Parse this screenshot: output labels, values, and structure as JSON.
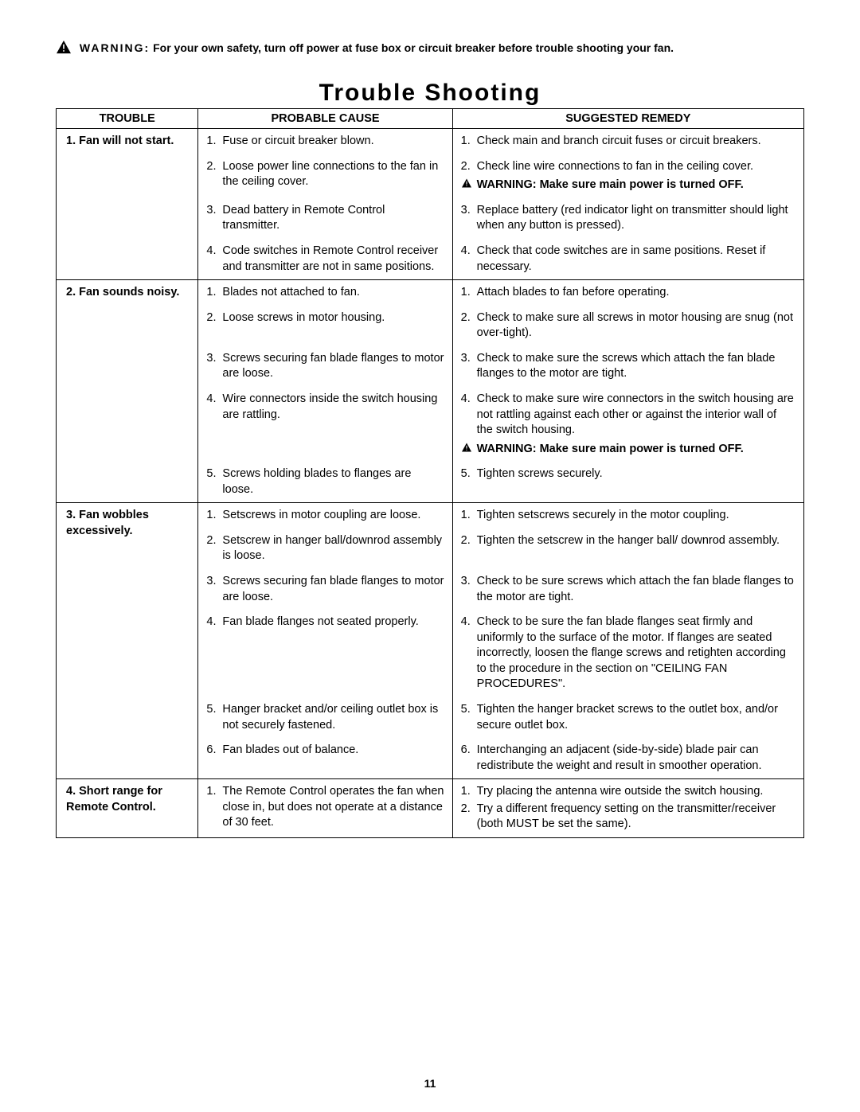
{
  "top_warning": {
    "label": "WARNING:",
    "text": "For your own safety, turn off power at fuse box or circuit breaker before trouble shooting your fan."
  },
  "title": "Trouble Shooting",
  "headers": {
    "trouble": "TROUBLE",
    "cause": "PROBABLE CAUSE",
    "remedy": "SUGGESTED REMEDY"
  },
  "sections": [
    {
      "trouble_num": "1.",
      "trouble_text": "Fan will not start.",
      "rows": [
        {
          "cause_num": "1.",
          "cause_text": "Fuse or circuit breaker blown.",
          "remedies": [
            {
              "num": "1.",
              "text": "Check main and branch circuit fuses or circuit breakers."
            }
          ]
        },
        {
          "cause_num": "2.",
          "cause_text": "Loose power line connections to the fan in the ceiling cover.",
          "remedies": [
            {
              "num": "2.",
              "text": "Check line wire connections to fan in the ceiling cover."
            }
          ],
          "remedy_warning": "WARNING: Make sure main power is turned OFF."
        },
        {
          "cause_num": "3.",
          "cause_text": "Dead battery in Remote Control transmitter.",
          "remedies": [
            {
              "num": "3.",
              "text": "Replace battery (red indicator light on transmitter should light when any button is pressed)."
            }
          ]
        },
        {
          "cause_num": "4.",
          "cause_text": "Code switches in Remote Control receiver and transmitter are not in same positions.",
          "remedies": [
            {
              "num": "4.",
              "text": "Check that code switches are in same positions. Reset if necessary."
            }
          ]
        }
      ]
    },
    {
      "trouble_num": "2.",
      "trouble_text": "Fan sounds noisy.",
      "rows": [
        {
          "cause_num": "1.",
          "cause_text": "Blades not attached to fan.",
          "remedies": [
            {
              "num": "1.",
              "text": "Attach blades to fan before operating."
            }
          ]
        },
        {
          "cause_num": "2.",
          "cause_text": "Loose screws in motor housing.",
          "remedies": [
            {
              "num": "2.",
              "text": "Check to make sure all screws in motor housing are snug (not over-tight)."
            }
          ]
        },
        {
          "cause_num": "3.",
          "cause_text": "Screws securing fan blade flanges to motor are loose.",
          "remedies": [
            {
              "num": "3.",
              "text": "Check to make sure the screws which attach the fan blade flanges to the motor are tight."
            }
          ]
        },
        {
          "cause_num": "4.",
          "cause_text": "Wire connectors inside the switch housing are rattling.",
          "remedies": [
            {
              "num": "4.",
              "text": "Check to make sure wire connectors in the switch housing are not rattling against each other or against the interior wall of the switch housing."
            }
          ],
          "remedy_warning": "WARNING: Make sure main power is turned OFF."
        },
        {
          "cause_num": "5.",
          "cause_text": "Screws holding blades to flanges are loose.",
          "remedies": [
            {
              "num": "5.",
              "text": "Tighten screws securely."
            }
          ]
        }
      ]
    },
    {
      "trouble_num": "3.",
      "trouble_text": "Fan wobbles excessively.",
      "rows": [
        {
          "cause_num": "1.",
          "cause_text": "Setscrews in motor coupling are loose.",
          "remedies": [
            {
              "num": "1.",
              "text": "Tighten setscrews securely in the motor coupling."
            }
          ]
        },
        {
          "cause_num": "2.",
          "cause_text": "Setscrew in hanger ball/downrod assembly is loose.",
          "remedies": [
            {
              "num": "2.",
              "text": "Tighten the setscrew in the hanger ball/ downrod assembly."
            }
          ]
        },
        {
          "cause_num": "3.",
          "cause_text": "Screws securing fan blade flanges to motor are loose.",
          "remedies": [
            {
              "num": "3.",
              "text": "Check to be sure screws which attach the fan blade flanges to the motor are tight."
            }
          ]
        },
        {
          "cause_num": "4.",
          "cause_text": "Fan blade flanges not seated properly.",
          "remedies": [
            {
              "num": "4.",
              "text": "Check to be sure the fan blade flanges seat firmly and uniformly to the surface of the motor. If flanges are seated incorrectly, loosen the flange screws and retighten according to the procedure in the section on \"CEILING FAN PROCEDURES\"."
            }
          ]
        },
        {
          "cause_num": "5.",
          "cause_text": "Hanger bracket and/or ceiling outlet box is not securely fastened.",
          "remedies": [
            {
              "num": "5.",
              "text": "Tighten the hanger bracket screws to the outlet box, and/or secure outlet box."
            }
          ]
        },
        {
          "cause_num": "6.",
          "cause_text": "Fan blades out of balance.",
          "remedies": [
            {
              "num": "6.",
              "text": "Interchanging an adjacent (side-by-side) blade pair can redistribute the weight and result in smoother operation."
            }
          ]
        }
      ]
    },
    {
      "trouble_num": "4.",
      "trouble_text": "Short range for Remote Control.",
      "rows": [
        {
          "cause_num": "1.",
          "cause_text": "The Remote Control operates the fan when close in, but does not operate at a distance of 30 feet.",
          "remedies": [
            {
              "num": "1.",
              "text": "Try placing the antenna wire outside the switch housing."
            },
            {
              "num": "2.",
              "text": "Try a different frequency setting on the transmitter/receiver (both MUST be set the same)."
            }
          ]
        }
      ]
    }
  ],
  "page_number": "11"
}
